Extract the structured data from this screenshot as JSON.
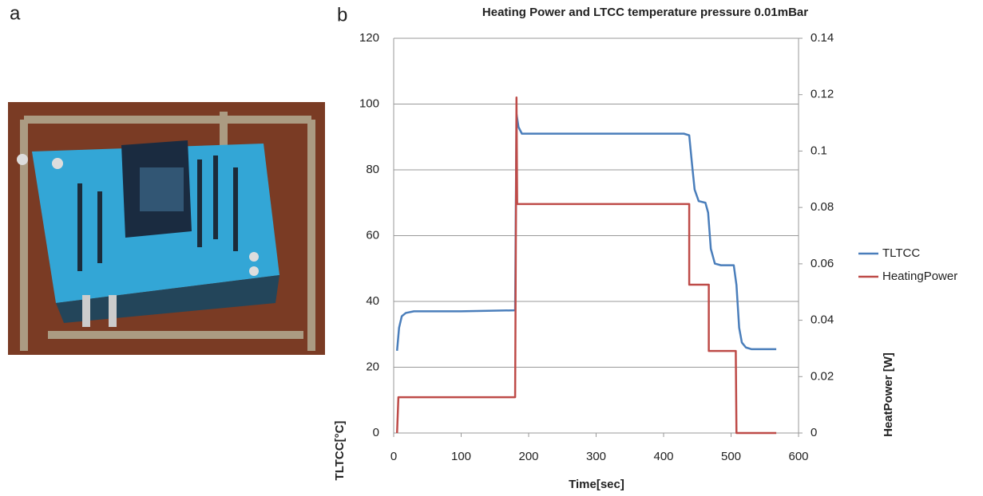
{
  "panel_labels": [
    "a",
    "b"
  ],
  "chart_data": {
    "type": "line",
    "title": "Heating Power and LTCC temperature pressure 0.01mBar",
    "xlabel": "Time[sec]",
    "ylabel": "TLTCC[°C]",
    "y2label": "HeatPower [W]",
    "xlim": [
      0,
      600
    ],
    "xticks": [
      0,
      100,
      200,
      300,
      400,
      500,
      600
    ],
    "ylim": [
      0,
      120
    ],
    "yticks": [
      0,
      20,
      40,
      60,
      80,
      100,
      120
    ],
    "y2lim": [
      0,
      0.14
    ],
    "y2ticks": [
      0,
      0.02,
      0.04,
      0.06,
      0.08,
      0.1,
      0.12,
      0.14
    ],
    "grid": true,
    "legend": "right",
    "series": [
      {
        "name": "TLTCC",
        "color": "#4a7ebb",
        "x": [
          5,
          8,
          12,
          18,
          30,
          100,
          180,
          182,
          185,
          190,
          300,
          430,
          438,
          442,
          446,
          452,
          462,
          466,
          470,
          476,
          485,
          504,
          508,
          512,
          516,
          522,
          530,
          567
        ],
        "values": [
          25,
          32,
          35.5,
          36.5,
          37,
          37,
          37.3,
          97,
          93,
          91,
          91,
          91,
          90.5,
          82,
          74,
          70.5,
          70,
          67,
          56,
          51.5,
          51,
          51,
          45,
          32,
          27.5,
          26,
          25.5,
          25.5
        ]
      },
      {
        "name": "HeatingPower",
        "color": "#be4b48",
        "axis": "y2",
        "x": [
          5,
          7,
          180,
          182,
          183,
          438,
          438,
          467,
          467,
          507,
          508,
          567
        ],
        "values": [
          0,
          0.0127,
          0.0127,
          0.119,
          0.0812,
          0.0812,
          0.0526,
          0.0526,
          0.0291,
          0.0291,
          0,
          0
        ]
      }
    ]
  }
}
